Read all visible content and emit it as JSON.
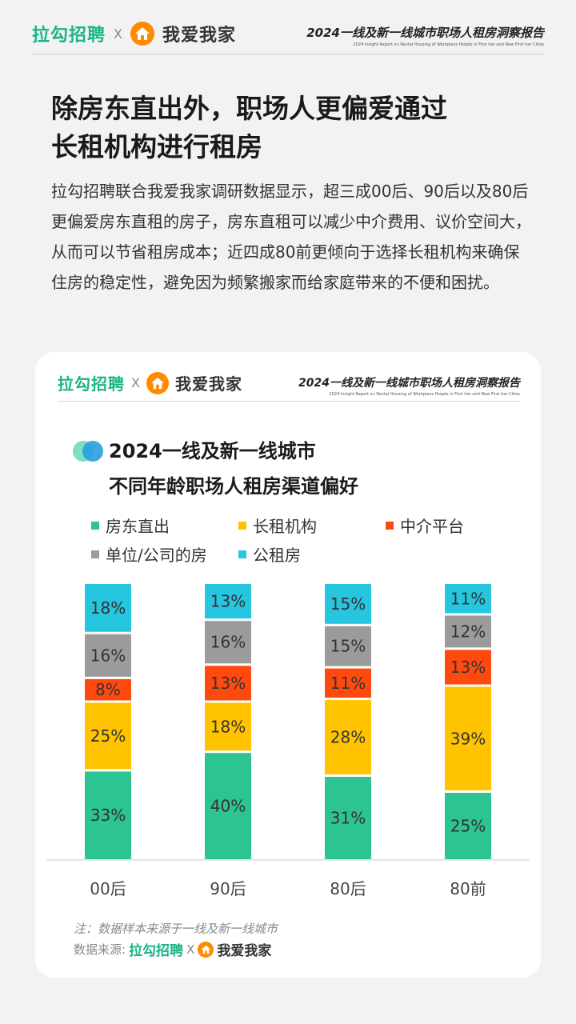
{
  "header": {
    "brand_left": "拉勾招聘",
    "brand_x": "X",
    "brand_right": "我爱我家",
    "report_title": "2024一线及新一线城市职场人租房洞察报告",
    "report_subtitle": "2024 Insight Report on Rental Housing of Workplace People in First tier and New First tier Cities"
  },
  "headline": [
    "除房东直出外，职场人更偏爱通过",
    "长租机构进行租房"
  ],
  "body_text": "拉勾招聘联合我爱我家调研数据显示，超三成00后、90后以及80后更偏爱房东直租的房子，房东直租可以减少中介费用、议价空间大，从而可以节省租房成本；近四成80前更倾向于选择长租机构来确保住房的稳定性，避免因为频繁搬家而给家庭带来的不便和困扰。",
  "card": {
    "brand_left": "拉勾招聘",
    "brand_x": "X",
    "brand_right": "我爱我家",
    "report_title": "2024一线及新一线城市职场人租房洞察报告",
    "report_subtitle": "2024 Insight Report on Rental Housing of Workplace People in First tier and New First tier Cities",
    "note": "注：数据样本来源于一线及新一线城市",
    "source_label": "数据来源:",
    "source_left": "拉勾招聘",
    "source_x": "X",
    "source_right": "我爱我家"
  },
  "icons": [
    "house-logo-icon",
    "chart-title-icon"
  ],
  "colors": {
    "brand_green": "#19b487",
    "brand_orange": "#ff8a00"
  },
  "chart_data": {
    "type": "bar",
    "stacked": true,
    "percent": true,
    "title_lines": [
      "2024一线及新一线城市",
      "不同年龄职场人租房渠道偏好"
    ],
    "categories": [
      "00后",
      "90后",
      "80后",
      "80前"
    ],
    "series": [
      {
        "name": "房东直出",
        "color": "#2cc492",
        "values": [
          33,
          40,
          31,
          25
        ]
      },
      {
        "name": "长租机构",
        "color": "#ffc300",
        "values": [
          25,
          18,
          28,
          39
        ]
      },
      {
        "name": "中介平台",
        "color": "#ff4a0f",
        "values": [
          8,
          13,
          11,
          13
        ]
      },
      {
        "name": "单位/公司的房",
        "color": "#9b9b9b",
        "values": [
          16,
          16,
          15,
          12
        ]
      },
      {
        "name": "公租房",
        "color": "#26c6e0",
        "values": [
          18,
          13,
          15,
          11
        ]
      }
    ],
    "value_suffix": "%",
    "legend_position": "top",
    "grid": false
  }
}
